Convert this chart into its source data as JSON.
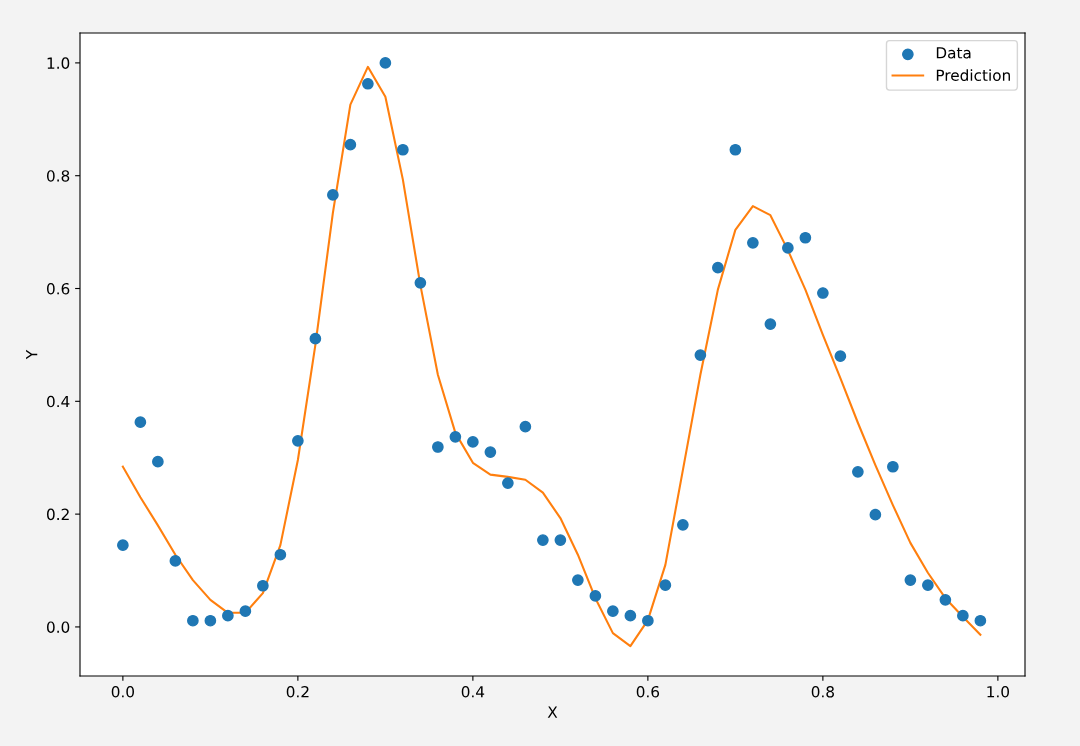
{
  "chart_data": {
    "type": "scatter",
    "xlabel": "X",
    "ylabel": "Y",
    "xlim": [
      -0.049,
      1.031
    ],
    "ylim": [
      -0.087,
      1.053
    ],
    "xticks": [
      {
        "value": 0,
        "label": "0.0"
      },
      {
        "value": 0.2,
        "label": "0.2"
      },
      {
        "value": 0.4,
        "label": "0.4"
      },
      {
        "value": 0.6,
        "label": "0.6"
      },
      {
        "value": 0.8,
        "label": "0.8"
      },
      {
        "value": 1.0,
        "label": "1.0"
      }
    ],
    "yticks": [
      {
        "value": 0,
        "label": "0.0"
      },
      {
        "value": 0.2,
        "label": "0.2"
      },
      {
        "value": 0.4,
        "label": "0.4"
      },
      {
        "value": 0.6,
        "label": "0.6"
      },
      {
        "value": 0.8,
        "label": "0.8"
      },
      {
        "value": 1.0,
        "label": "1.0"
      }
    ],
    "x": [
      0,
      0.02,
      0.04,
      0.06,
      0.08,
      0.1,
      0.12,
      0.14,
      0.16,
      0.18,
      0.2,
      0.22,
      0.24,
      0.26,
      0.28,
      0.3,
      0.32,
      0.34,
      0.36,
      0.38,
      0.4,
      0.42,
      0.44,
      0.46,
      0.48,
      0.5,
      0.52,
      0.54,
      0.56,
      0.58,
      0.6,
      0.62,
      0.64,
      0.66,
      0.68,
      0.7,
      0.72,
      0.74,
      0.76,
      0.78,
      0.8,
      0.82,
      0.84,
      0.86,
      0.88,
      0.9,
      0.92,
      0.94,
      0.96,
      0.98
    ],
    "series": [
      {
        "name": "Data",
        "marker": "circle",
        "color": "#1f77b4",
        "values": [
          0.145,
          0.363,
          0.293,
          0.117,
          0.011,
          0.011,
          0.02,
          0.028,
          0.073,
          0.128,
          0.33,
          0.511,
          0.766,
          0.855,
          0.963,
          1.0,
          0.846,
          0.61,
          0.319,
          0.337,
          0.328,
          0.31,
          0.255,
          0.355,
          0.154,
          0.154,
          0.083,
          0.055,
          0.028,
          0.02,
          0.011,
          0.074,
          0.181,
          0.482,
          0.637,
          0.846,
          0.681,
          0.537,
          0.672,
          0.69,
          0.592,
          0.48,
          0.275,
          0.199,
          0.284,
          0.083,
          0.074,
          0.048,
          0.02,
          0.011
        ]
      },
      {
        "name": "Prediction",
        "type": "line",
        "line_style": "solid",
        "color": "#ff7f0e",
        "values": [
          0.284,
          0.23,
          0.18,
          0.128,
          0.083,
          0.048,
          0.025,
          0.025,
          0.06,
          0.145,
          0.296,
          0.5,
          0.734,
          0.926,
          0.993,
          0.94,
          0.793,
          0.606,
          0.447,
          0.344,
          0.291,
          0.27,
          0.266,
          0.261,
          0.238,
          0.193,
          0.128,
          0.051,
          -0.011,
          -0.034,
          0.012,
          0.11,
          0.278,
          0.447,
          0.598,
          0.704,
          0.746,
          0.73,
          0.668,
          0.598,
          0.518,
          0.441,
          0.362,
          0.287,
          0.216,
          0.149,
          0.096,
          0.051,
          0.018,
          -0.014
        ]
      }
    ],
    "legend": "top right",
    "grid": false
  }
}
